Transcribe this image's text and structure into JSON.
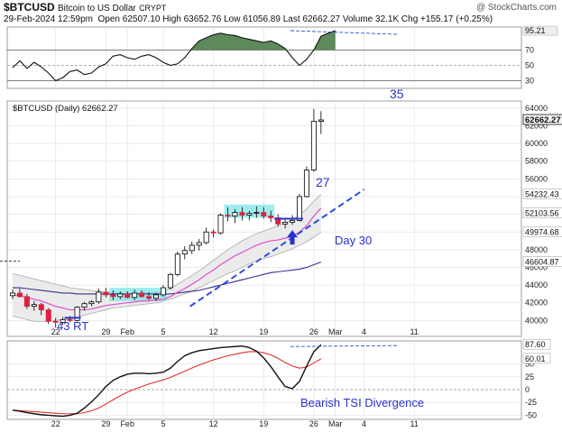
{
  "header": {
    "symbol": "$BTCUSD",
    "name": "Bitcoin to US Dollar",
    "exchange": "CRYPT",
    "watermark": "@ StockCharts.com",
    "date": "29-Feb-2024 12:59pm",
    "stats_line": "Open 62507.10  High 63652.76  Low 61056.89  Last 62662.27  Volume 32.1K  Chg +155.17 (+0.25%)"
  },
  "price_legend": "$BTCUSD (Daily) 62662.27",
  "annotations": {
    "label_35": "35",
    "label_27": "27",
    "label_day30": "Day 30",
    "label_43rt": "43 RT",
    "label_tsi": "Bearish TSI Divergence"
  },
  "colors": {
    "up": "#ffffff",
    "down": "#e0213c",
    "candle_edge": "#000000",
    "ema20": "#e04fcf",
    "ma50": "#3c2f8a",
    "bands": "#cfcfcf",
    "highlight": "#7fe6ea",
    "trendline": "#2d4fd8",
    "rsi_fill": "#5d8a5a",
    "rsi_low_fill": "#8a3b42",
    "tsi": "#111111",
    "signal": "#e03030",
    "annot": "#2a33c9"
  },
  "chart_data": [
    {
      "type": "line",
      "name": "upper-indicator",
      "ylim": [
        20,
        100
      ],
      "y_ticks": [
        30,
        50,
        70,
        95.21
      ],
      "y_tick_labels": [
        "30",
        "50",
        "70",
        "95.21"
      ],
      "ref_lines": [
        30,
        50,
        70
      ],
      "values": [
        47,
        56,
        46,
        54,
        48,
        40,
        30,
        34,
        42,
        44,
        38,
        40,
        48,
        52,
        62,
        64,
        60,
        58,
        62,
        64,
        60,
        54,
        50,
        52,
        60,
        72,
        82,
        86,
        90,
        92,
        90,
        89,
        86,
        84,
        82,
        80,
        82,
        78,
        72,
        60,
        50,
        58,
        70,
        88,
        92,
        95.21
      ]
    },
    {
      "type": "candlestick",
      "name": "price",
      "ylim": [
        38200,
        64800
      ],
      "y_ticks": [
        40000,
        42000,
        44000,
        46000,
        48000,
        50000,
        52000,
        54000,
        56000,
        58000,
        60000,
        62000,
        64000
      ],
      "y_tick_labels": [
        "40000",
        "42000",
        "44000",
        "46000",
        "48000",
        "50000",
        "52000",
        "54000",
        "56000",
        "58000",
        "60000",
        "62000",
        "64000"
      ],
      "value_labels": [
        {
          "value": 62662.27,
          "text": "62662.27"
        },
        {
          "value": 54232.43,
          "text": "54232.43"
        },
        {
          "value": 52103.56,
          "text": "52103.56"
        },
        {
          "value": 49974.68,
          "text": "49974.68"
        },
        {
          "value": 46604.87,
          "text": "46604.87"
        }
      ],
      "x_ticks": [
        {
          "i": 6,
          "text": "22"
        },
        {
          "i": 13,
          "text": "29"
        },
        {
          "i": 16,
          "text": "Feb"
        },
        {
          "i": 21,
          "text": "5"
        },
        {
          "i": 28,
          "text": "12"
        },
        {
          "i": 35,
          "text": "19"
        },
        {
          "i": 42,
          "text": "26"
        },
        {
          "i": 45,
          "text": "Mar"
        },
        {
          "i": 49,
          "text": "4"
        },
        {
          "i": 56,
          "text": "11"
        }
      ],
      "ohlc": [
        [
          42800,
          43500,
          42400,
          43100
        ],
        [
          43100,
          43600,
          42600,
          42700
        ],
        [
          42700,
          43000,
          41300,
          41600
        ],
        [
          41600,
          42200,
          41100,
          41800
        ],
        [
          41800,
          42000,
          40600,
          41200
        ],
        [
          41200,
          41400,
          39600,
          39900
        ],
        [
          39900,
          40300,
          39200,
          39800
        ],
        [
          39800,
          40400,
          39500,
          40100
        ],
        [
          40100,
          40500,
          39800,
          40000
        ],
        [
          40000,
          41600,
          39900,
          41500
        ],
        [
          41500,
          42100,
          41100,
          41900
        ],
        [
          41900,
          42300,
          41600,
          42100
        ],
        [
          42100,
          43600,
          41900,
          43200
        ],
        [
          43200,
          43700,
          42600,
          42900
        ],
        [
          42900,
          43400,
          42300,
          42700
        ],
        [
          42700,
          43300,
          42400,
          43000
        ],
        [
          43000,
          43300,
          42500,
          42600
        ],
        [
          42600,
          43500,
          42300,
          43100
        ],
        [
          43100,
          43400,
          42600,
          42700
        ],
        [
          42700,
          43200,
          42300,
          42500
        ],
        [
          42500,
          43100,
          42200,
          42900
        ],
        [
          42900,
          44000,
          42700,
          43700
        ],
        [
          43700,
          45400,
          43500,
          45200
        ],
        [
          45200,
          47800,
          45000,
          47500
        ],
        [
          47500,
          48400,
          46900,
          47900
        ],
        [
          47900,
          48900,
          47500,
          48500
        ],
        [
          48500,
          49200,
          47900,
          48800
        ],
        [
          48800,
          50500,
          48600,
          50000
        ],
        [
          50000,
          50300,
          49400,
          49900
        ],
        [
          49900,
          52100,
          49700,
          51900
        ],
        [
          51900,
          52800,
          51200,
          51800
        ],
        [
          51800,
          52600,
          51000,
          52200
        ],
        [
          52200,
          52800,
          51300,
          51900
        ],
        [
          51900,
          52400,
          51300,
          52100
        ],
        [
          52100,
          52900,
          51600,
          52200
        ],
        [
          52200,
          52800,
          51500,
          51800
        ],
        [
          51800,
          52400,
          51100,
          51600
        ],
        [
          51600,
          52000,
          50600,
          50900
        ],
        [
          50900,
          51600,
          50400,
          51100
        ],
        [
          51100,
          51900,
          50800,
          51300
        ],
        [
          51300,
          54300,
          51200,
          54000
        ],
        [
          54000,
          57400,
          53900,
          57000
        ],
        [
          57000,
          63900,
          56800,
          62507
        ],
        [
          62507,
          63652,
          61057,
          62662
        ]
      ],
      "ema": [
        42900,
        42800,
        42600,
        42400,
        42200,
        41900,
        41600,
        41400,
        41200,
        41200,
        41200,
        41300,
        41500,
        41700,
        41800,
        41900,
        42000,
        42100,
        42200,
        42200,
        42300,
        42400,
        42700,
        43200,
        43600,
        44100,
        44600,
        45200,
        45700,
        46300,
        46800,
        47300,
        47700,
        48100,
        48500,
        48800,
        49000,
        49100,
        49300,
        49500,
        50000,
        50700,
        51800,
        52700
      ],
      "ma50": [
        43700,
        43700,
        43600,
        43500,
        43400,
        43300,
        43200,
        43100,
        43100,
        43000,
        43000,
        43000,
        43000,
        43000,
        43000,
        43000,
        43000,
        43000,
        43000,
        43000,
        43000,
        43000,
        43000,
        43100,
        43200,
        43300,
        43400,
        43600,
        43800,
        44000,
        44200,
        44400,
        44600,
        44800,
        45000,
        45200,
        45400,
        45500,
        45600,
        45700,
        45800,
        46000,
        46300,
        46600
      ],
      "band_upper": [
        45300,
        45100,
        44900,
        44700,
        44500,
        44300,
        44100,
        43900,
        43700,
        43600,
        43500,
        43400,
        43300,
        43200,
        43200,
        43100,
        43100,
        43100,
        43100,
        43100,
        43200,
        43300,
        43600,
        44100,
        44600,
        45100,
        45600,
        46200,
        46800,
        47400,
        48000,
        48500,
        49000,
        49400,
        49800,
        50100,
        50400,
        50700,
        51000,
        51400,
        51900,
        52600,
        53500,
        54232
      ],
      "band_lower": [
        40500,
        40300,
        40100,
        39900,
        39900,
        39900,
        40000,
        40100,
        40200,
        40400,
        40600,
        40800,
        41000,
        41200,
        41400,
        41500,
        41600,
        41700,
        41800,
        41900,
        42000,
        42200,
        42400,
        42700,
        43000,
        43300,
        43700,
        44100,
        44500,
        44900,
        45300,
        45600,
        46000,
        46400,
        46700,
        47000,
        47200,
        47500,
        47800,
        48100,
        48500,
        48900,
        49400,
        49975
      ]
    },
    {
      "type": "line",
      "name": "TSI",
      "ylim": [
        -58,
        95
      ],
      "y_ticks": [
        -50,
        -25,
        0,
        25,
        50
      ],
      "y_tick_labels": [
        "-50",
        "-25",
        "0",
        "25",
        "50"
      ],
      "value_labels": [
        {
          "value": 87.6,
          "text": "87.60"
        },
        {
          "value": 60.01,
          "text": "60.01"
        }
      ],
      "tsi": [
        -40,
        -42,
        -45,
        -47,
        -49,
        -50,
        -51,
        -52,
        -50,
        -46,
        -36,
        -24,
        -10,
        6,
        18,
        25,
        30,
        32,
        32,
        31,
        32,
        34,
        42,
        55,
        66,
        72,
        76,
        78,
        80,
        82,
        83,
        84,
        85,
        82,
        75,
        62,
        45,
        25,
        6,
        2,
        16,
        46,
        74,
        87.6
      ],
      "signal": [
        -40,
        -41,
        -42,
        -43,
        -44,
        -45,
        -46,
        -47,
        -47,
        -47,
        -45,
        -41,
        -36,
        -28,
        -20,
        -12,
        -5,
        1,
        6,
        11,
        15,
        19,
        24,
        30,
        36,
        42,
        48,
        53,
        58,
        62,
        66,
        69,
        72,
        74,
        74,
        72,
        68,
        61,
        53,
        46,
        42,
        44,
        52,
        60.01
      ]
    }
  ]
}
